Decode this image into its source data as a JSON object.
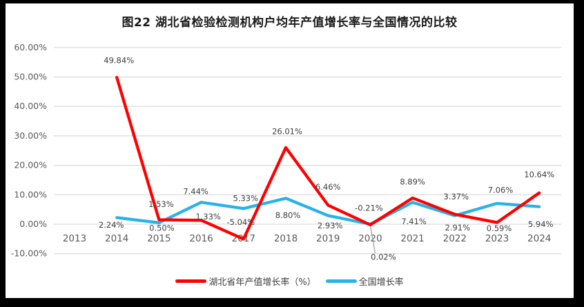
{
  "title": "图22 湖北省检验检测机构户均年产值增长率与全国情况的比较",
  "colors": {
    "frame_bg": "#000000",
    "canvas_bg": "#ffffff",
    "gridline": "#d9d9d9",
    "axis_text": "#595959",
    "data_label_text": "#404040",
    "leader_line": "#a0a0a0",
    "hubei_red": "#ff0000",
    "national_blue": "#29b2e8"
  },
  "chart_data": {
    "type": "line",
    "title": "图22 湖北省检验检测机构户均年产值增长率与全国情况的比较",
    "categories": [
      "2013",
      "2014",
      "2015",
      "2016",
      "2017",
      "2018",
      "2019",
      "2020",
      "2021",
      "2022",
      "2023",
      "2024"
    ],
    "xlabel": "",
    "ylabel": "",
    "ylim": [
      -10,
      60
    ],
    "grid": true,
    "legend_position": "bottom",
    "y_axis": {
      "ticks": [
        60,
        50,
        40,
        30,
        20,
        10,
        0,
        -10
      ],
      "tick_labels": [
        "60.00%",
        "50.00%",
        "40.00%",
        "30.00%",
        "20.00%",
        "10.00%",
        "0.00%",
        "-10.00%"
      ]
    },
    "series": [
      {
        "id": "hubei",
        "name": "湖北省年产值增长率（%）",
        "color": "#ff0000",
        "values": [
          null,
          49.84,
          1.53,
          1.33,
          -5.04,
          26.01,
          6.46,
          -0.21,
          8.89,
          3.37,
          0.59,
          10.64
        ],
        "labels": [
          null,
          "49.84%",
          "1.53%",
          "1.33%",
          "-5.04%",
          "26.01%",
          "6.46%",
          "-0.21%",
          "8.89%",
          "3.37%",
          "0.59%",
          "10.64%"
        ],
        "label_dx": [
          null,
          3,
          3,
          10,
          -4,
          2,
          0,
          -2,
          0,
          2,
          3,
          0
        ],
        "label_dy": [
          null,
          -24,
          -22,
          -5,
          -24,
          -23,
          -26,
          -24,
          -23,
          -25,
          9,
          -26
        ],
        "label_callout": [
          null,
          false,
          false,
          false,
          false,
          false,
          false,
          false,
          false,
          false,
          false,
          false
        ]
      },
      {
        "id": "national",
        "name": "全国增长率",
        "color": "#29b2e8",
        "values": [
          null,
          2.24,
          0.5,
          7.44,
          5.33,
          8.8,
          2.93,
          0.02,
          7.41,
          2.91,
          7.06,
          5.94
        ],
        "labels": [
          null,
          "2.24%",
          "0.50%",
          "7.44%",
          "5.33%",
          "8.80%",
          "2.93%",
          "0.02%",
          "7.41%",
          "2.91%",
          "7.06%",
          "5.94%"
        ],
        "label_dx": [
          null,
          -8,
          4,
          -8,
          3,
          3,
          3,
          19,
          2,
          4,
          5,
          2
        ],
        "label_dy": [
          null,
          11,
          8,
          -15,
          -14,
          25,
          15,
          48,
          28,
          18,
          -19,
          26
        ],
        "label_callout": [
          null,
          false,
          false,
          false,
          false,
          false,
          false,
          true,
          false,
          false,
          false,
          false
        ]
      }
    ]
  },
  "legend": {
    "items": [
      {
        "label": "湖北省年产值增长率（%）"
      },
      {
        "label": "全国增长率"
      }
    ]
  }
}
